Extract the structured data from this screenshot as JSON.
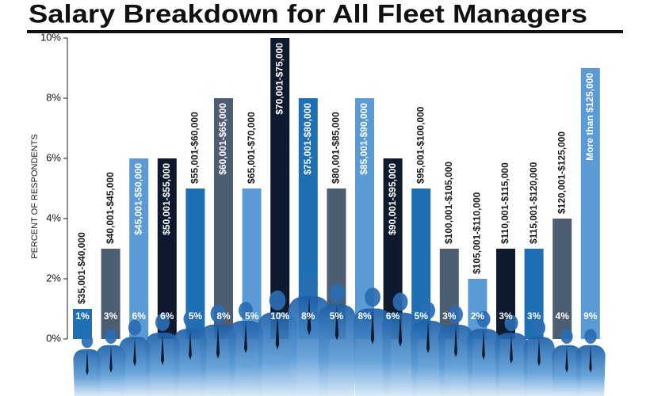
{
  "chart_data": {
    "type": "bar",
    "title": "Salary Breakdown for All Fleet Managers",
    "y_label": "PERCENT OF RESPONDENTS",
    "categories": [
      "$35,001-$40,000",
      "$40,001-$45,000",
      "$45,001-$50,000",
      "$50,001-$55,000",
      "$55,001-$60,000",
      "$60,001-$65,000",
      "$65,001-$70,000",
      "$70,001-$75,000",
      "$75,001-$80,000",
      "$80,001-$85,000",
      "$85,001-$90,000",
      "$90,001-$95,000",
      "$95,001-$100,000",
      "$100,001-$105,000",
      "$105,001-$110,000",
      "$110,001-$115,000",
      "$115,001-$120,000",
      "$120,001-$125,000",
      "More than $125,000"
    ],
    "values": [
      1,
      3,
      6,
      6,
      5,
      8,
      5,
      10,
      8,
      5,
      8,
      6,
      5,
      3,
      2,
      3,
      3,
      4,
      9
    ],
    "value_labels": [
      "1%",
      "3%",
      "6%",
      "6%",
      "5%",
      "8%",
      "5%",
      "10%",
      "8%",
      "5%",
      "8%",
      "6%",
      "5%",
      "3%",
      "2%",
      "3%",
      "3%",
      "4%",
      "9%"
    ],
    "colors": [
      "#1f6fb5",
      "#4d5d72",
      "#5b9bd5",
      "#0f1a2e",
      "#1f6fb5",
      "#4d5d72",
      "#5b9bd5",
      "#0f1a2e",
      "#1f6fb5",
      "#4d5d72",
      "#5b9bd5",
      "#0f1a2e",
      "#1f6fb5",
      "#4d5d72",
      "#5b9bd5",
      "#0f1a2e",
      "#1f6fb5",
      "#4d5d72",
      "#5b9bd5"
    ],
    "ylim": [
      0,
      10
    ],
    "yticks": [
      {
        "value": 0,
        "label": "0%"
      },
      {
        "value": 2,
        "label": "2%"
      },
      {
        "value": 4,
        "label": "4%"
      },
      {
        "value": 6,
        "label": "6%"
      },
      {
        "value": 8,
        "label": "8%"
      },
      {
        "value": 10,
        "label": "10%"
      }
    ]
  }
}
